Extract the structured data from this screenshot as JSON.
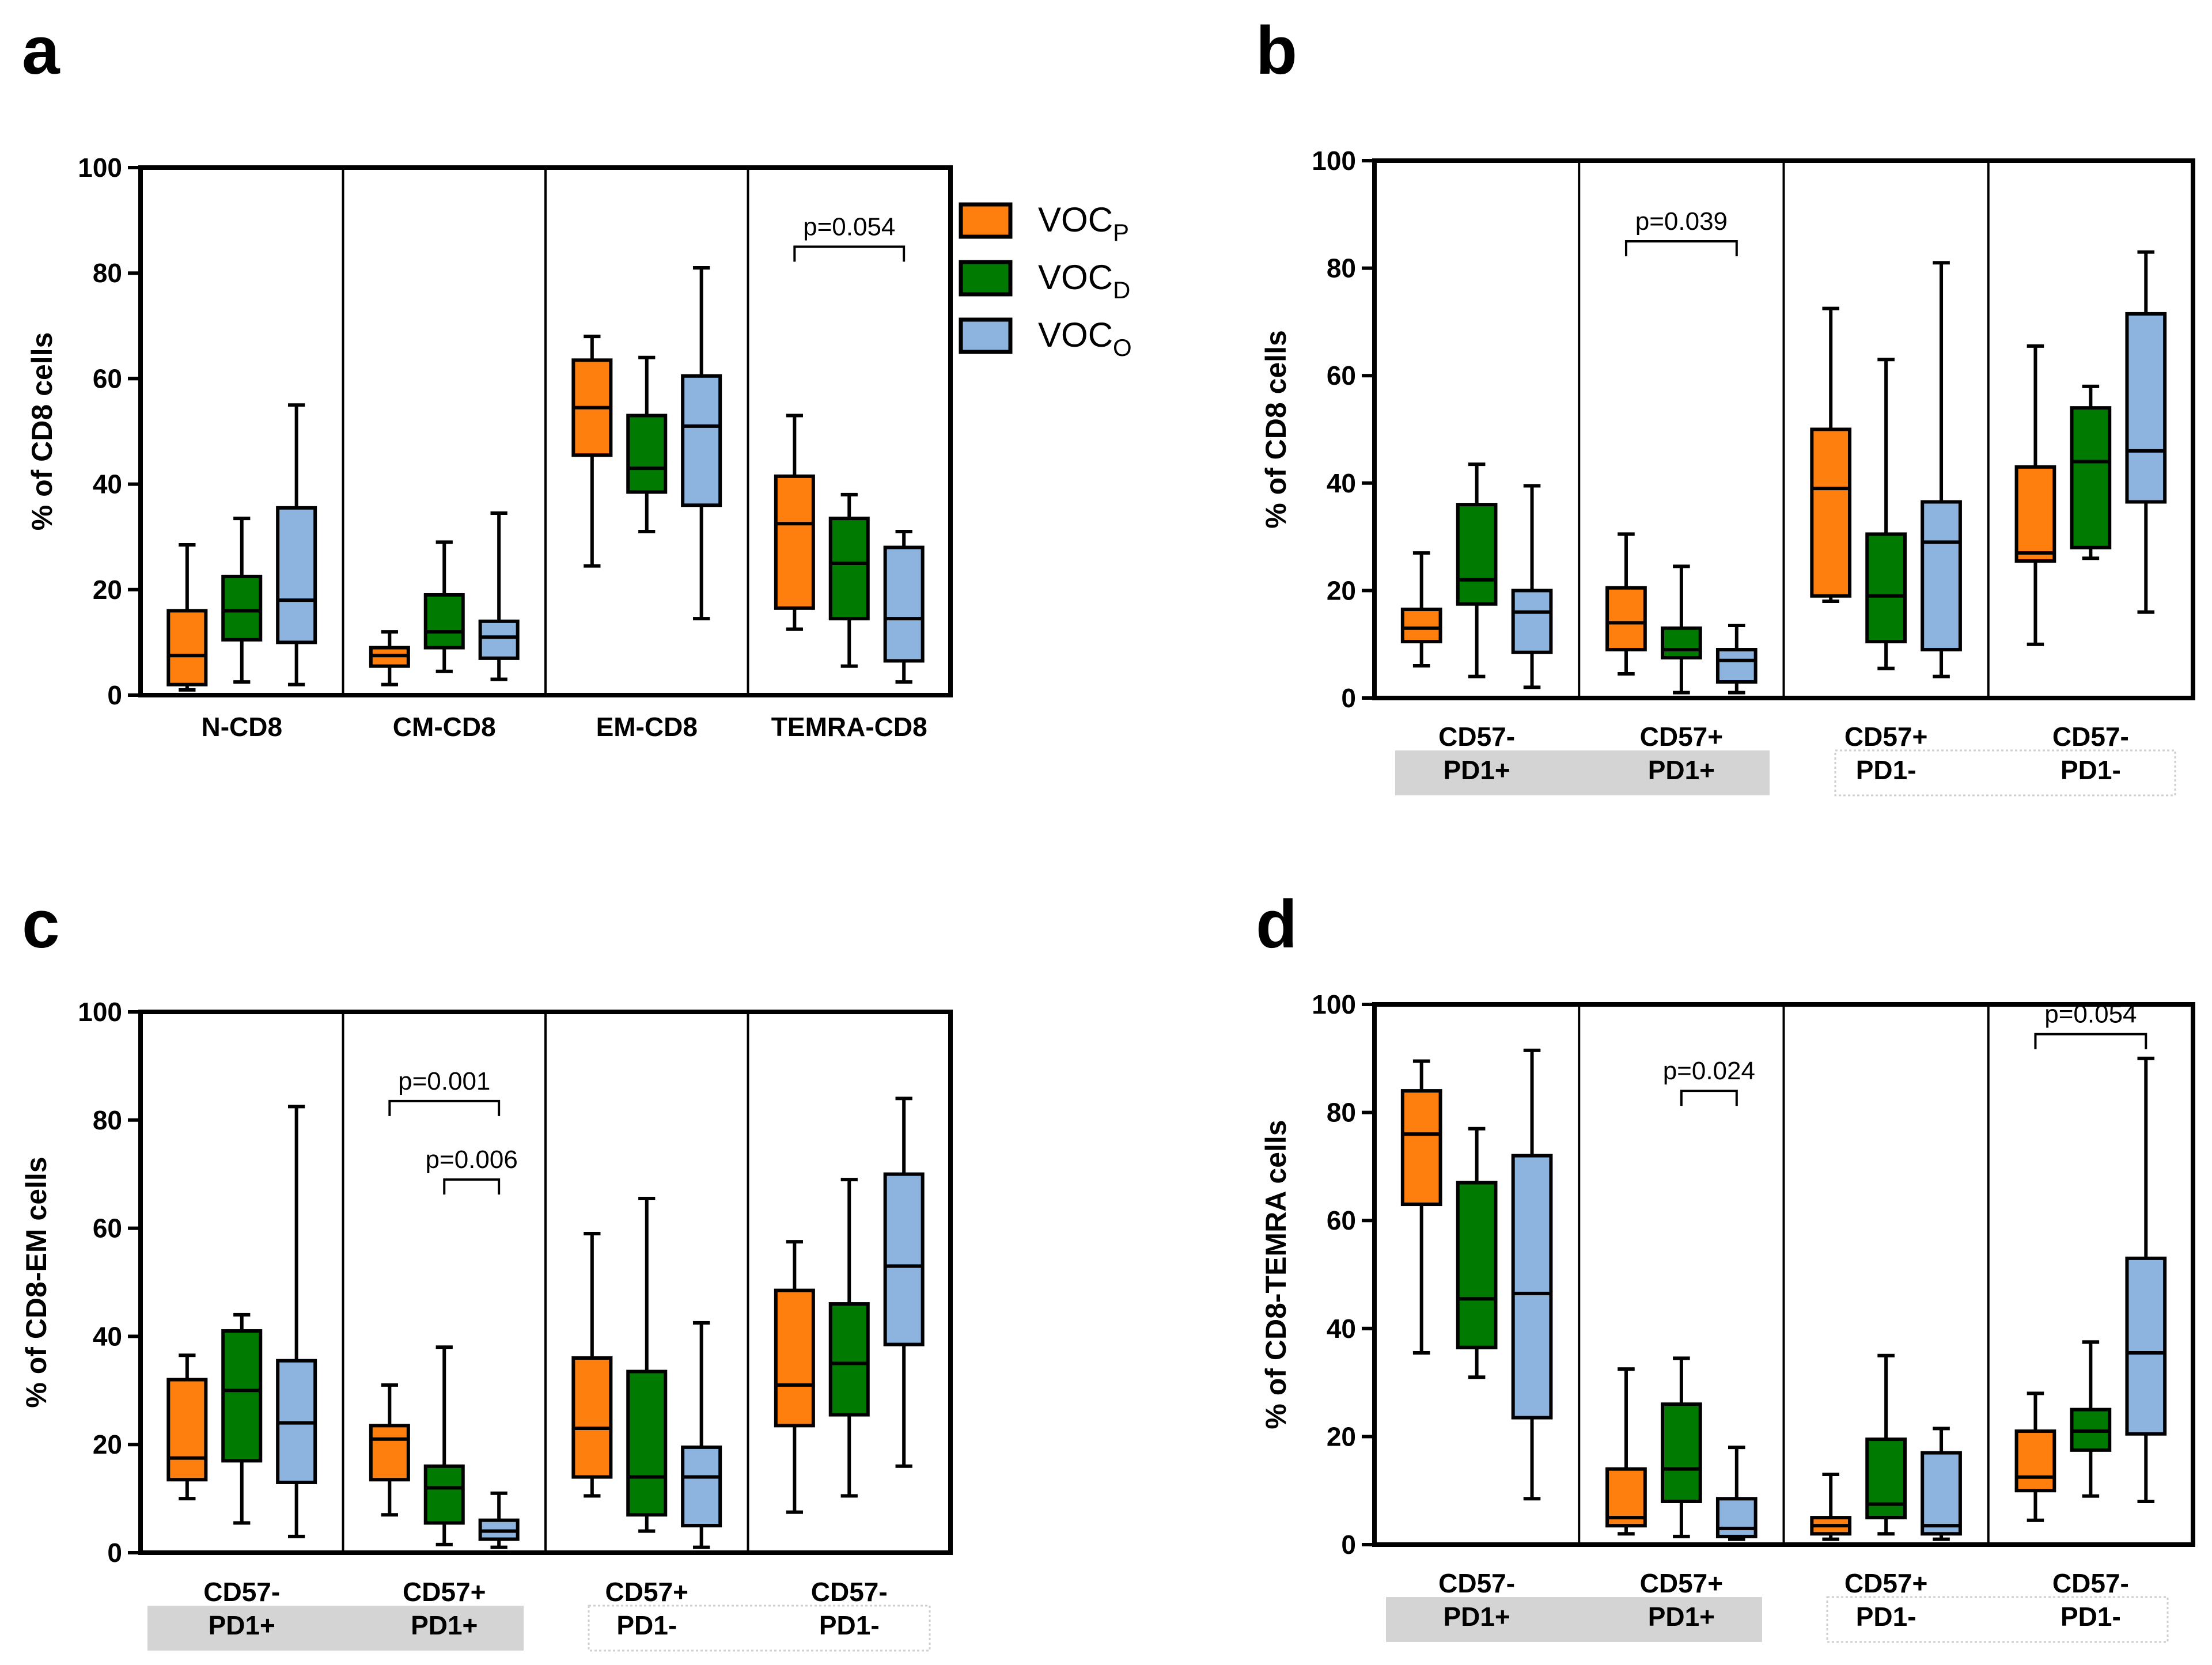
{
  "legend": {
    "items": [
      {
        "main": "VOC",
        "sub": "P",
        "color": "#ff7f0e"
      },
      {
        "main": "VOC",
        "sub": "D",
        "color": "#007a00"
      },
      {
        "main": "VOC",
        "sub": "O",
        "color": "#8cb4de"
      }
    ]
  },
  "colors": {
    "orange": "#ff7f0e",
    "green": "#007a00",
    "blue": "#8cb4de",
    "shade": "#d4d4d4"
  },
  "chart_data": [
    {
      "id": "a",
      "letter": "a",
      "type": "box",
      "ylabel": "% of CD8 cells",
      "ylim": [
        0,
        100
      ],
      "yticks": [
        "0",
        "20",
        "40",
        "60",
        "80",
        "100"
      ],
      "series": [
        "VOCP",
        "VOCD",
        "VOCO"
      ],
      "categories": [
        {
          "label_lines": [
            "N-CD8"
          ],
          "group": null,
          "boxes": [
            {
              "min": 1,
              "q1": 2,
              "median": 7.5,
              "q3": 16,
              "max": 28.5
            },
            {
              "min": 2.5,
              "q1": 10.5,
              "median": 16,
              "q3": 22.5,
              "max": 33.5
            },
            {
              "min": 2,
              "q1": 10,
              "median": 18,
              "q3": 35.5,
              "max": 55
            }
          ]
        },
        {
          "label_lines": [
            "CM-CD8"
          ],
          "group": null,
          "boxes": [
            {
              "min": 2,
              "q1": 5.5,
              "median": 7.5,
              "q3": 9,
              "max": 12
            },
            {
              "min": 4.5,
              "q1": 9,
              "median": 12,
              "q3": 19,
              "max": 29
            },
            {
              "min": 3,
              "q1": 7,
              "median": 11,
              "q3": 14,
              "max": 34.5
            }
          ]
        },
        {
          "label_lines": [
            "EM-CD8"
          ],
          "group": null,
          "boxes": [
            {
              "min": 24.5,
              "q1": 45.5,
              "median": 54.5,
              "q3": 63.5,
              "max": 68
            },
            {
              "min": 31,
              "q1": 38.5,
              "median": 43,
              "q3": 53,
              "max": 64
            },
            {
              "min": 14.5,
              "q1": 36,
              "median": 51,
              "q3": 60.5,
              "max": 81
            }
          ]
        },
        {
          "label_lines": [
            "TEMRA-CD8"
          ],
          "group": null,
          "boxes": [
            {
              "min": 12.5,
              "q1": 16.5,
              "median": 32.5,
              "q3": 41.5,
              "max": 53
            },
            {
              "min": 5.5,
              "q1": 14.5,
              "median": 25,
              "q3": 33.5,
              "max": 38
            },
            {
              "min": 2.5,
              "q1": 6.5,
              "median": 14.5,
              "q3": 28,
              "max": 31
            }
          ]
        }
      ],
      "annotations": [
        {
          "text": "p=0.054",
          "category": 3,
          "from": 0,
          "to": 2,
          "y": 85
        }
      ]
    },
    {
      "id": "b",
      "letter": "b",
      "type": "box",
      "ylabel": "% of CD8 cells",
      "ylim": [
        0,
        100
      ],
      "yticks": [
        "0",
        "20",
        "40",
        "60",
        "80",
        "100"
      ],
      "series": [
        "VOCP",
        "VOCD",
        "VOCO"
      ],
      "categories": [
        {
          "label_lines": [
            "CD57-",
            "PD1+"
          ],
          "group": "PD1+",
          "boxes": [
            {
              "min": 6,
              "q1": 10.5,
              "median": 13,
              "q3": 16.5,
              "max": 27
            },
            {
              "min": 4,
              "q1": 17.5,
              "median": 22,
              "q3": 36,
              "max": 43.5
            },
            {
              "min": 2,
              "q1": 8.5,
              "median": 16,
              "q3": 20,
              "max": 39.5
            }
          ]
        },
        {
          "label_lines": [
            "CD57+",
            "PD1+"
          ],
          "group": "PD1+",
          "boxes": [
            {
              "min": 4.5,
              "q1": 9,
              "median": 14,
              "q3": 20.5,
              "max": 30.5
            },
            {
              "min": 1,
              "q1": 7.5,
              "median": 9,
              "q3": 13,
              "max": 24.5
            },
            {
              "min": 1,
              "q1": 3,
              "median": 7,
              "q3": 9,
              "max": 13.5
            }
          ]
        },
        {
          "label_lines": [
            "CD57+",
            "PD1-"
          ],
          "group": "PD1-",
          "boxes": [
            {
              "min": 18,
              "q1": 19,
              "median": 39,
              "q3": 50,
              "max": 72.5
            },
            {
              "min": 5.5,
              "q1": 10.5,
              "median": 19,
              "q3": 30.5,
              "max": 63
            },
            {
              "min": 4,
              "q1": 9,
              "median": 29,
              "q3": 36.5,
              "max": 81
            }
          ]
        },
        {
          "label_lines": [
            "CD57-",
            "PD1-"
          ],
          "group": "PD1-",
          "boxes": [
            {
              "min": 10,
              "q1": 25.5,
              "median": 27,
              "q3": 43,
              "max": 65.5
            },
            {
              "min": 26,
              "q1": 28,
              "median": 44,
              "q3": 54,
              "max": 58
            },
            {
              "min": 16,
              "q1": 36.5,
              "median": 46,
              "q3": 71.5,
              "max": 83
            }
          ]
        }
      ],
      "annotations": [
        {
          "text": "p=0.039",
          "category": 1,
          "from": 0,
          "to": 2,
          "y": 85
        }
      ]
    },
    {
      "id": "c",
      "letter": "c",
      "type": "box",
      "ylabel": "% of CD8-EM cells",
      "ylim": [
        0,
        100
      ],
      "yticks": [
        "0",
        "20",
        "40",
        "60",
        "80",
        "100"
      ],
      "series": [
        "VOCP",
        "VOCD",
        "VOCO"
      ],
      "categories": [
        {
          "label_lines": [
            "CD57-",
            "PD1+"
          ],
          "group": "PD1+",
          "boxes": [
            {
              "min": 10,
              "q1": 13.5,
              "median": 17.5,
              "q3": 32,
              "max": 36.5
            },
            {
              "min": 5.5,
              "q1": 17,
              "median": 30,
              "q3": 41,
              "max": 44
            },
            {
              "min": 3,
              "q1": 13,
              "median": 24,
              "q3": 35.5,
              "max": 82.5
            }
          ]
        },
        {
          "label_lines": [
            "CD57+",
            "PD1+"
          ],
          "group": "PD1+",
          "boxes": [
            {
              "min": 7,
              "q1": 13.5,
              "median": 21,
              "q3": 23.5,
              "max": 31
            },
            {
              "min": 1.5,
              "q1": 5.5,
              "median": 12,
              "q3": 16,
              "max": 38
            },
            {
              "min": 1,
              "q1": 2.5,
              "median": 4,
              "q3": 6,
              "max": 11
            }
          ]
        },
        {
          "label_lines": [
            "CD57+",
            "PD1-"
          ],
          "group": "PD1-",
          "boxes": [
            {
              "min": 10.5,
              "q1": 14,
              "median": 23,
              "q3": 36,
              "max": 59
            },
            {
              "min": 4,
              "q1": 7,
              "median": 14,
              "q3": 33.5,
              "max": 65.5
            },
            {
              "min": 1,
              "q1": 5,
              "median": 14,
              "q3": 19.5,
              "max": 42.5
            }
          ]
        },
        {
          "label_lines": [
            "CD57-",
            "PD1-"
          ],
          "group": "PD1-",
          "boxes": [
            {
              "min": 7.5,
              "q1": 23.5,
              "median": 31,
              "q3": 48.5,
              "max": 57.5
            },
            {
              "min": 10.5,
              "q1": 25.5,
              "median": 35,
              "q3": 46,
              "max": 69
            },
            {
              "min": 16,
              "q1": 38.5,
              "median": 53,
              "q3": 70,
              "max": 84
            }
          ]
        }
      ],
      "annotations": [
        {
          "text": "p=0.001",
          "category": 1,
          "from": 0,
          "to": 2,
          "y": 83.5
        },
        {
          "text": "p=0.006",
          "category": 1,
          "from": 1,
          "to": 2,
          "y": 69
        }
      ]
    },
    {
      "id": "d",
      "letter": "d",
      "type": "box",
      "ylabel": "% of CD8-TEMRA cells",
      "ylim": [
        0,
        100
      ],
      "yticks": [
        "0",
        "20",
        "40",
        "60",
        "80",
        "100"
      ],
      "series": [
        "VOCP",
        "VOCD",
        "VOCO"
      ],
      "categories": [
        {
          "label_lines": [
            "CD57-",
            "PD1+"
          ],
          "group": "PD1+",
          "boxes": [
            {
              "min": 35.5,
              "q1": 63,
              "median": 76,
              "q3": 84,
              "max": 89.5
            },
            {
              "min": 31,
              "q1": 36.5,
              "median": 45.5,
              "q3": 67,
              "max": 77
            },
            {
              "min": 8.5,
              "q1": 23.5,
              "median": 46.5,
              "q3": 72,
              "max": 91.5
            }
          ]
        },
        {
          "label_lines": [
            "CD57+",
            "PD1+"
          ],
          "group": "PD1+",
          "boxes": [
            {
              "min": 2,
              "q1": 3.5,
              "median": 5,
              "q3": 14,
              "max": 32.5
            },
            {
              "min": 1.5,
              "q1": 8,
              "median": 14,
              "q3": 26,
              "max": 34.5
            },
            {
              "min": 1,
              "q1": 1.5,
              "median": 3,
              "q3": 8.5,
              "max": 18
            }
          ]
        },
        {
          "label_lines": [
            "CD57+",
            "PD1-"
          ],
          "group": "PD1-",
          "boxes": [
            {
              "min": 1,
              "q1": 2,
              "median": 3.5,
              "q3": 5,
              "max": 13
            },
            {
              "min": 2,
              "q1": 5,
              "median": 7.5,
              "q3": 19.5,
              "max": 35
            },
            {
              "min": 1,
              "q1": 2,
              "median": 3.5,
              "q3": 17,
              "max": 21.5
            }
          ]
        },
        {
          "label_lines": [
            "CD57-",
            "PD1-"
          ],
          "group": "PD1-",
          "boxes": [
            {
              "min": 4.5,
              "q1": 10,
              "median": 12.5,
              "q3": 21,
              "max": 28
            },
            {
              "min": 9,
              "q1": 17.5,
              "median": 21,
              "q3": 25,
              "max": 37.5
            },
            {
              "min": 8,
              "q1": 20.5,
              "median": 35.5,
              "q3": 53,
              "max": 90
            }
          ]
        }
      ],
      "annotations": [
        {
          "text": "p=0.024",
          "category": 1,
          "from": 1,
          "to": 2,
          "y": 84
        },
        {
          "text": "p=0.054",
          "category": 3,
          "from": 0,
          "to": 2,
          "y": 94.5
        }
      ]
    }
  ]
}
